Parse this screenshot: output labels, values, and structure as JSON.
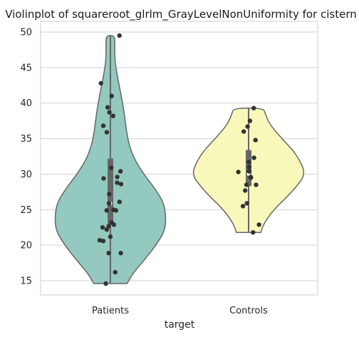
{
  "chart_data": {
    "type": "violin",
    "title": "Violinplot of squareroot_glrlm_GrayLevelNonUniformity for cistern",
    "xlabel": "target",
    "ylabel": "",
    "categories": [
      "Patients",
      "Controls"
    ],
    "ylim": [
      13,
      51.5
    ],
    "yticks": [
      15,
      20,
      25,
      30,
      35,
      40,
      45,
      50
    ],
    "grid": true,
    "colors": {
      "Patients": "#93c9bf",
      "Controls": "#f8f8bb"
    },
    "series": [
      {
        "category": "Patients",
        "min": 14.6,
        "max": 49.5,
        "q1": 23.0,
        "median": 25.9,
        "q3": 32.2,
        "density": [
          [
            14.6,
            0.3
          ],
          [
            16,
            0.4
          ],
          [
            18,
            0.62
          ],
          [
            20,
            0.82
          ],
          [
            22,
            0.98
          ],
          [
            24,
            1.0
          ],
          [
            26,
            0.96
          ],
          [
            28,
            0.8
          ],
          [
            30,
            0.6
          ],
          [
            32,
            0.44
          ],
          [
            34,
            0.34
          ],
          [
            36,
            0.29
          ],
          [
            38,
            0.26
          ],
          [
            40,
            0.22
          ],
          [
            42,
            0.17
          ],
          [
            44,
            0.12
          ],
          [
            46,
            0.08
          ],
          [
            48,
            0.08
          ],
          [
            49.5,
            0.08
          ]
        ],
        "points": [
          49.5,
          42.8,
          41.0,
          39.4,
          38.7,
          38.2,
          36.8,
          35.9,
          30.9,
          30.4,
          29.6,
          29.4,
          28.6,
          28.8,
          27.2,
          26.1,
          25.9,
          25.0,
          24.9,
          24.9,
          23.2,
          22.9,
          22.7,
          22.5,
          22.2,
          21.2,
          20.7,
          20.6,
          18.9,
          18.9,
          16.2,
          14.6
        ]
      },
      {
        "category": "Controls",
        "min": 21.8,
        "max": 39.3,
        "q1": 28.3,
        "median": 30.0,
        "q3": 33.4,
        "density": [
          [
            21.8,
            0.22
          ],
          [
            23,
            0.27
          ],
          [
            25,
            0.45
          ],
          [
            27,
            0.72
          ],
          [
            29,
            0.94
          ],
          [
            30,
            1.0
          ],
          [
            31,
            0.98
          ],
          [
            33,
            0.84
          ],
          [
            35,
            0.6
          ],
          [
            37,
            0.38
          ],
          [
            38.5,
            0.3
          ],
          [
            39.3,
            0.27
          ]
        ],
        "points": [
          39.3,
          37.5,
          36.7,
          36.0,
          34.8,
          32.3,
          31.7,
          31.0,
          30.4,
          30.3,
          29.6,
          29.5,
          28.5,
          28.5,
          27.7,
          25.9,
          25.5,
          22.9,
          21.8
        ]
      }
    ]
  }
}
